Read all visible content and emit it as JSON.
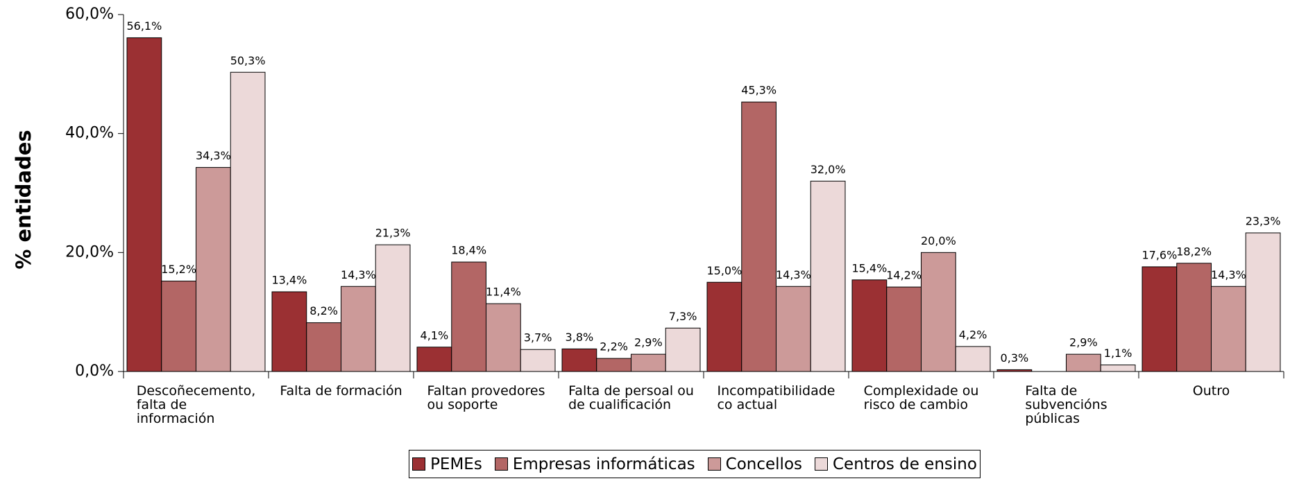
{
  "chart_data": {
    "type": "bar",
    "y_label": "% entidades",
    "categories": [
      "Descoñecemento,\nfalta de\ninformación",
      "Falta de formación",
      "Faltan provedores\nou soporte",
      "Falta de persoal ou\nde cualificación",
      "Incompatibilidade\nco actual",
      "Complexidade ou\nrisco de cambio",
      "Falta de\nsubvencións\npúblicas",
      "Outro"
    ],
    "series": [
      {
        "name": "PEMEs",
        "color": "#9b3033",
        "values": [
          56.1,
          13.4,
          4.1,
          3.8,
          15.0,
          15.4,
          0.3,
          17.6
        ],
        "value_labels": [
          "56,1%",
          "13,4%",
          "4,1%",
          "3,8%",
          "15,0%",
          "15,4%",
          "0,3%",
          "17,6%"
        ]
      },
      {
        "name": "Empresas informáticas",
        "color": "#b36665",
        "values": [
          15.2,
          8.2,
          18.4,
          2.2,
          45.3,
          14.2,
          null,
          18.2
        ],
        "value_labels": [
          "15,2%",
          "8,2%",
          "18,4%",
          "2,2%",
          "45,3%",
          "14,2%",
          null,
          "18,2%"
        ]
      },
      {
        "name": "Concellos",
        "color": "#cc9a99",
        "values": [
          34.3,
          14.3,
          11.4,
          2.9,
          14.3,
          20.0,
          2.9,
          14.3
        ],
        "value_labels": [
          "34,3%",
          "14,3%",
          "11,4%",
          "2,9%",
          "14,3%",
          "20,0%",
          "2,9%",
          "14,3%"
        ]
      },
      {
        "name": "Centros de ensino",
        "color": "#ecd9d9",
        "values": [
          50.3,
          21.3,
          3.7,
          7.3,
          32.0,
          4.2,
          1.1,
          23.3
        ],
        "value_labels": [
          "50,3%",
          "21,3%",
          "3,7%",
          "7,3%",
          "32,0%",
          "4,2%",
          "1,1%",
          "23,3%"
        ]
      }
    ],
    "ylim": [
      0,
      60
    ],
    "yticks": [
      {
        "value": 0,
        "label": "0,0%"
      },
      {
        "value": 20,
        "label": "20,0%"
      },
      {
        "value": 40,
        "label": "40,0%"
      },
      {
        "value": 60,
        "label": "60,0%"
      }
    ],
    "legend": "bottom"
  }
}
